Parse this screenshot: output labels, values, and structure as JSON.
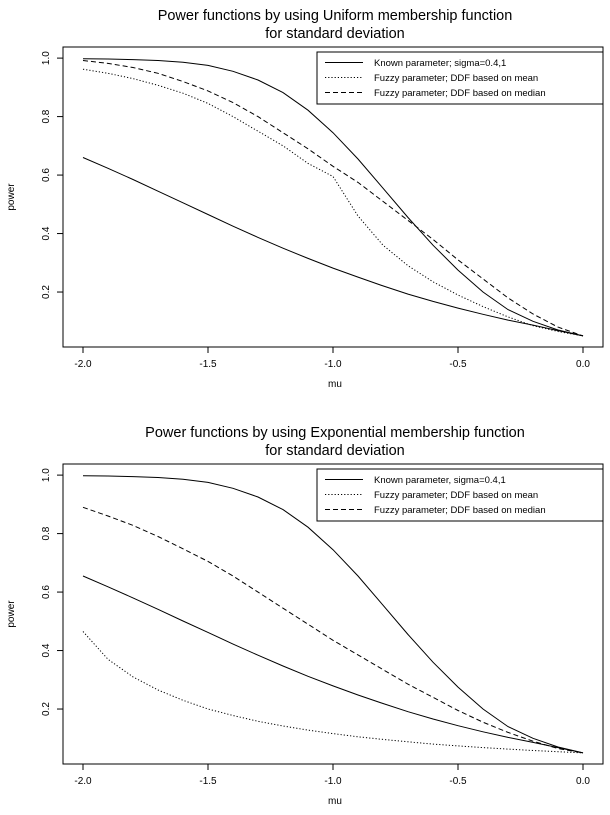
{
  "chart_data": [
    {
      "type": "line",
      "title": "Power functions by using Uniform membership function",
      "subtitle": "for standard deviation",
      "xlabel": "mu",
      "ylabel": "power",
      "xlim": [
        -2.0,
        0.0
      ],
      "ylim": [
        0.05,
        1.0
      ],
      "xticks": [
        "-2.0",
        "-1.5",
        "-1.0",
        "-0.5",
        "0.0"
      ],
      "yticks": [
        "0.2",
        "0.4",
        "0.6",
        "0.8",
        "1.0"
      ],
      "grid": false,
      "legend": {
        "position": "top-right",
        "entries": [
          "Known parameter; sigma=0.4,1",
          "Fuzzy parameter; DDF based on mean",
          "Fuzzy parameter; DDF based on median"
        ]
      },
      "x": [
        -2.0,
        -1.9,
        -1.8,
        -1.7,
        -1.6,
        -1.5,
        -1.4,
        -1.3,
        -1.2,
        -1.1,
        -1.0,
        -0.9,
        -0.8,
        -0.7,
        -0.6,
        -0.5,
        -0.4,
        -0.3,
        -0.2,
        -0.1,
        0.0
      ],
      "series": [
        {
          "style": "solid",
          "values": [
            0.998,
            0.997,
            0.995,
            0.992,
            0.986,
            0.975,
            0.955,
            0.925,
            0.882,
            0.822,
            0.745,
            0.655,
            0.555,
            0.455,
            0.36,
            0.275,
            0.2,
            0.14,
            0.1,
            0.07,
            0.05
          ]
        },
        {
          "style": "solid",
          "values": [
            0.66,
            0.623,
            0.585,
            0.545,
            0.505,
            0.465,
            0.425,
            0.387,
            0.35,
            0.315,
            0.282,
            0.251,
            0.221,
            0.193,
            0.168,
            0.145,
            0.124,
            0.104,
            0.087,
            0.068,
            0.05
          ]
        },
        {
          "style": "dotted",
          "values": [
            0.962,
            0.948,
            0.93,
            0.907,
            0.88,
            0.845,
            0.8,
            0.75,
            0.7,
            0.64,
            0.595,
            0.46,
            0.36,
            0.29,
            0.235,
            0.19,
            0.15,
            0.115,
            0.085,
            0.065,
            0.05
          ]
        },
        {
          "style": "dashed",
          "values": [
            0.992,
            0.982,
            0.968,
            0.948,
            0.92,
            0.888,
            0.848,
            0.8,
            0.745,
            0.69,
            0.63,
            0.575,
            0.51,
            0.445,
            0.38,
            0.31,
            0.245,
            0.18,
            0.125,
            0.08,
            0.05
          ]
        }
      ]
    },
    {
      "type": "line",
      "title": "Power functions by using Exponential membership function",
      "subtitle": "for standard deviation",
      "xlabel": "mu",
      "ylabel": "power",
      "xlim": [
        -2.0,
        0.0
      ],
      "ylim": [
        0.05,
        1.0
      ],
      "xticks": [
        "-2.0",
        "-1.5",
        "-1.0",
        "-0.5",
        "0.0"
      ],
      "yticks": [
        "0.2",
        "0.4",
        "0.6",
        "0.8",
        "1.0"
      ],
      "grid": false,
      "legend": {
        "position": "top-right",
        "entries": [
          "Known parameter, sigma=0.4,1",
          "Fuzzy parameter; DDF based on mean",
          "Fuzzy parameter; DDF based on median"
        ]
      },
      "x": [
        -2.0,
        -1.9,
        -1.8,
        -1.7,
        -1.6,
        -1.5,
        -1.4,
        -1.3,
        -1.2,
        -1.1,
        -1.0,
        -0.9,
        -0.8,
        -0.7,
        -0.6,
        -0.5,
        -0.4,
        -0.3,
        -0.2,
        -0.1,
        0.0
      ],
      "series": [
        {
          "style": "solid",
          "values": [
            0.998,
            0.997,
            0.995,
            0.992,
            0.986,
            0.975,
            0.955,
            0.925,
            0.882,
            0.822,
            0.745,
            0.655,
            0.555,
            0.455,
            0.36,
            0.275,
            0.2,
            0.14,
            0.1,
            0.07,
            0.05
          ]
        },
        {
          "style": "solid",
          "values": [
            0.655,
            0.618,
            0.58,
            0.541,
            0.501,
            0.462,
            0.422,
            0.384,
            0.347,
            0.312,
            0.279,
            0.248,
            0.219,
            0.191,
            0.166,
            0.143,
            0.122,
            0.103,
            0.086,
            0.068,
            0.05
          ]
        },
        {
          "style": "dotted",
          "values": [
            0.465,
            0.37,
            0.31,
            0.265,
            0.23,
            0.2,
            0.178,
            0.158,
            0.142,
            0.128,
            0.116,
            0.105,
            0.096,
            0.088,
            0.08,
            0.074,
            0.068,
            0.063,
            0.058,
            0.054,
            0.05
          ]
        },
        {
          "style": "dashed",
          "values": [
            0.89,
            0.86,
            0.828,
            0.79,
            0.748,
            0.705,
            0.655,
            0.6,
            0.545,
            0.49,
            0.435,
            0.385,
            0.335,
            0.285,
            0.24,
            0.195,
            0.155,
            0.12,
            0.09,
            0.065,
            0.05
          ]
        }
      ]
    }
  ]
}
